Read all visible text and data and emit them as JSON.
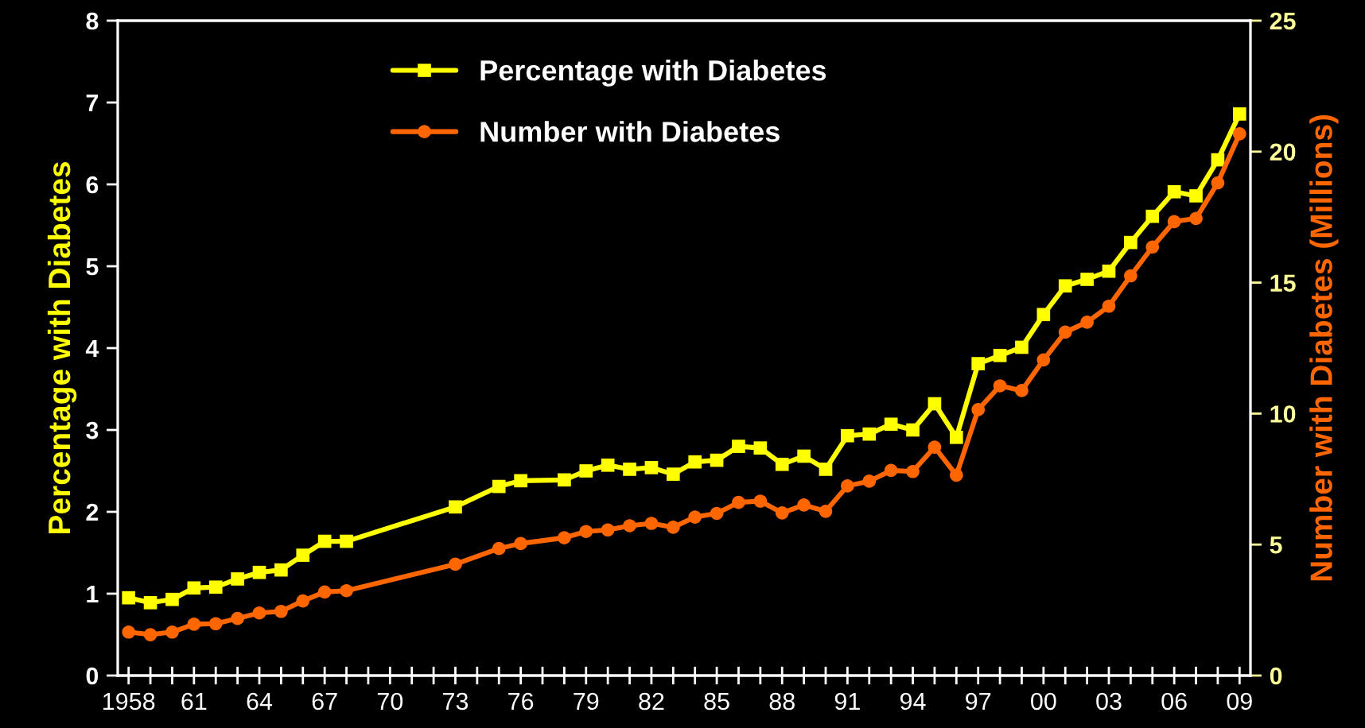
{
  "chart_data": {
    "type": "line",
    "ylabel": "Percentage with Diabetes",
    "y2label": "Number with Diabetes (Millions)",
    "x": [
      1958,
      1959,
      1960,
      1961,
      1962,
      1963,
      1964,
      1965,
      1966,
      1967,
      1968,
      1973,
      1975,
      1976,
      1978,
      1979,
      1980,
      1981,
      1982,
      1983,
      1984,
      1985,
      1986,
      1987,
      1988,
      1989,
      1990,
      1991,
      1992,
      1993,
      1994,
      1995,
      1996,
      1997,
      1998,
      1999,
      2000,
      2001,
      2002,
      2003,
      2004,
      2005,
      2006,
      2007,
      2008,
      2009
    ],
    "series": [
      {
        "name": "Percentage with Diabetes",
        "color": "#ffff00",
        "marker": "square",
        "values": [
          0.95,
          0.89,
          0.93,
          1.07,
          1.08,
          1.18,
          1.26,
          1.29,
          1.47,
          1.64,
          1.64,
          2.06,
          2.31,
          2.38,
          2.39,
          2.5,
          2.57,
          2.52,
          2.54,
          2.46,
          2.61,
          2.63,
          2.8,
          2.78,
          2.58,
          2.68,
          2.52,
          2.93,
          2.95,
          3.07,
          3.0,
          3.32,
          2.91,
          3.81,
          3.91,
          4.01,
          4.41,
          4.76,
          4.84,
          4.94,
          5.29,
          5.61,
          5.91,
          5.86,
          6.3,
          6.86
        ]
      },
      {
        "name": "Number with Diabetes",
        "color": "#ff6600",
        "marker": "circle",
        "axis": "y2",
        "values": [
          1.66,
          1.56,
          1.66,
          1.96,
          1.98,
          2.18,
          2.39,
          2.45,
          2.85,
          3.19,
          3.24,
          4.25,
          4.85,
          5.04,
          5.26,
          5.5,
          5.56,
          5.72,
          5.81,
          5.66,
          6.05,
          6.19,
          6.61,
          6.66,
          6.21,
          6.51,
          6.27,
          7.24,
          7.42,
          7.83,
          7.79,
          8.72,
          7.65,
          10.15,
          11.06,
          10.88,
          12.05,
          13.11,
          13.49,
          14.1,
          15.26,
          16.36,
          17.33,
          17.45,
          18.81,
          20.68
        ]
      }
    ],
    "xlim": [
      1957.5,
      2009.5
    ],
    "xticks": [
      {
        "value": 1958,
        "label": "1958"
      },
      {
        "value": 1959,
        "label": null
      },
      {
        "value": 1960,
        "label": null
      },
      {
        "value": 1961,
        "label": "61"
      },
      {
        "value": 1962,
        "label": null
      },
      {
        "value": 1963,
        "label": null
      },
      {
        "value": 1964,
        "label": "64"
      },
      {
        "value": 1965,
        "label": null
      },
      {
        "value": 1966,
        "label": null
      },
      {
        "value": 1967,
        "label": "67"
      },
      {
        "value": 1968,
        "label": null
      },
      {
        "value": 1969,
        "label": null
      },
      {
        "value": 1970,
        "label": "70"
      },
      {
        "value": 1971,
        "label": null
      },
      {
        "value": 1972,
        "label": null
      },
      {
        "value": 1973,
        "label": "73"
      },
      {
        "value": 1974,
        "label": null
      },
      {
        "value": 1975,
        "label": null
      },
      {
        "value": 1976,
        "label": "76"
      },
      {
        "value": 1977,
        "label": null
      },
      {
        "value": 1978,
        "label": null
      },
      {
        "value": 1979,
        "label": "79"
      },
      {
        "value": 1980,
        "label": null
      },
      {
        "value": 1981,
        "label": null
      },
      {
        "value": 1982,
        "label": "82"
      },
      {
        "value": 1983,
        "label": null
      },
      {
        "value": 1984,
        "label": null
      },
      {
        "value": 1985,
        "label": "85"
      },
      {
        "value": 1986,
        "label": null
      },
      {
        "value": 1987,
        "label": null
      },
      {
        "value": 1988,
        "label": "88"
      },
      {
        "value": 1989,
        "label": null
      },
      {
        "value": 1990,
        "label": null
      },
      {
        "value": 1991,
        "label": "91"
      },
      {
        "value": 1992,
        "label": null
      },
      {
        "value": 1993,
        "label": null
      },
      {
        "value": 1994,
        "label": "94"
      },
      {
        "value": 1995,
        "label": null
      },
      {
        "value": 1996,
        "label": null
      },
      {
        "value": 1997,
        "label": "97"
      },
      {
        "value": 1998,
        "label": null
      },
      {
        "value": 1999,
        "label": null
      },
      {
        "value": 2000,
        "label": "00"
      },
      {
        "value": 2001,
        "label": null
      },
      {
        "value": 2002,
        "label": null
      },
      {
        "value": 2003,
        "label": "03"
      },
      {
        "value": 2004,
        "label": null
      },
      {
        "value": 2005,
        "label": null
      },
      {
        "value": 2006,
        "label": "06"
      },
      {
        "value": 2007,
        "label": null
      },
      {
        "value": 2008,
        "label": null
      },
      {
        "value": 2009,
        "label": "09"
      }
    ],
    "ylim": [
      0,
      8
    ],
    "yticks": [
      0,
      1,
      2,
      3,
      4,
      5,
      6,
      7,
      8
    ],
    "y2lim": [
      0,
      25
    ],
    "y2ticks": [
      0,
      5,
      10,
      15,
      20,
      25
    ],
    "grid": false,
    "legend": "top",
    "line_style": "solid"
  }
}
